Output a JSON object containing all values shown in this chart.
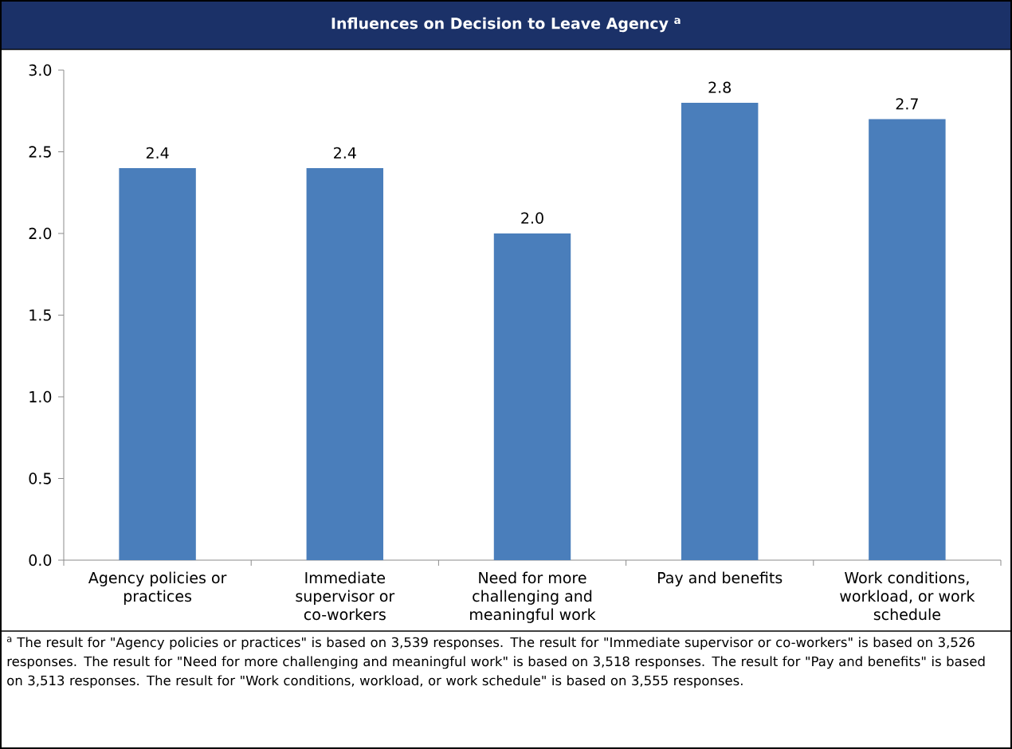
{
  "chart_data": {
    "type": "bar",
    "title": "Influences on Decision to Leave Agency $^{a}$",
    "categories": [
      "Agency policies or practices",
      "Immediate supervisor or co-workers",
      "Need for more challenging and meaningful work",
      "Pay and benefits",
      "Work conditions, workload, or work schedule"
    ],
    "values": [
      2.4,
      2.4,
      2.0,
      2.8,
      2.7
    ],
    "value_labels": [
      "2.4",
      "2.4",
      "2.0",
      "2.8",
      "2.7"
    ],
    "color": "#4a7ebb",
    "ylim": [
      0,
      3
    ],
    "yticks": [
      {
        "value": 0,
        "label": "0.0"
      },
      0.5,
      {
        "value": 1,
        "label": "1.0"
      },
      1.5,
      {
        "value": 2,
        "label": "2.0"
      },
      2.5,
      {
        "value": 3,
        "label": "3.0"
      }
    ],
    "annotations": [
      "$^{a}$ The result for \"Agency policies or practices\" is based on 3,539 responses. The result for \"Immediate supervisor or co-workers\" is based on 3,526 responses. The result for \"Need for more challenging and meaningful work\" is based on 3,518 responses. The result for \"Pay and benefits\" is based on 3,513 responses. The result for \"Work conditions, workload, or work schedule\" is based on 3,555 responses."
    ]
  }
}
